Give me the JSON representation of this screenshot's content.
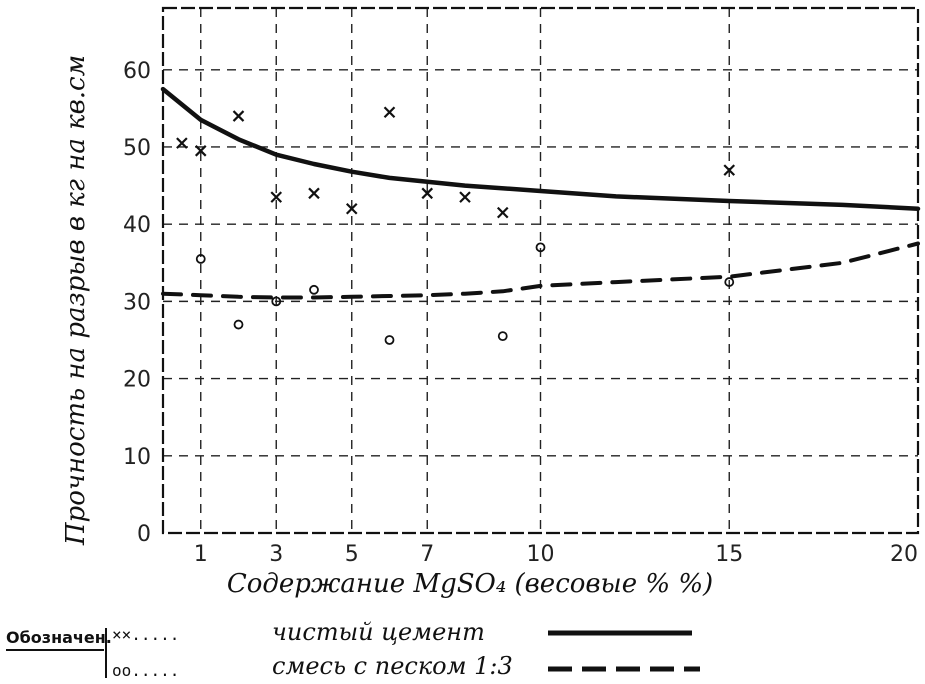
{
  "chart_data": {
    "type": "scatter",
    "ylabel": "Прочность на разрыв в кг на кв.см",
    "xlabel": "Содержание MgSO₄ (весовые % %)",
    "xlim": [
      0,
      20
    ],
    "ylim": [
      0,
      68
    ],
    "x_ticks": [
      1,
      3,
      5,
      7,
      10,
      15,
      20
    ],
    "x_tick_labels": [
      "1",
      "3",
      "5",
      "7",
      "10",
      "15",
      "20"
    ],
    "y_ticks": [
      0,
      10,
      20,
      30,
      40,
      50,
      60
    ],
    "y_tick_labels": [
      "0",
      "10",
      "20",
      "30",
      "40",
      "50",
      "60"
    ],
    "grid": true,
    "legend": {
      "title": "Обозначен.",
      "placement": "bottom-left",
      "entries": [
        {
          "marker": "××.....",
          "label": "чистый цемент",
          "line": "solid"
        },
        {
          "marker": "oo.....",
          "label": "смесь с песком 1:3",
          "line": "dashed"
        }
      ]
    },
    "series": [
      {
        "name": "чистый цемент",
        "marker": "x",
        "points": [
          [
            0.5,
            50.5
          ],
          [
            1.0,
            49.5
          ],
          [
            2.0,
            54.0
          ],
          [
            3.0,
            43.5
          ],
          [
            4.0,
            44.0
          ],
          [
            5.0,
            42.0
          ],
          [
            6.0,
            54.5
          ],
          [
            7.0,
            44.0
          ],
          [
            8.0,
            43.5
          ],
          [
            9.0,
            41.5
          ],
          [
            15.0,
            47.0
          ]
        ],
        "curve": {
          "style": "solid",
          "x": [
            0,
            0.5,
            1,
            2,
            3,
            4,
            5,
            6,
            7,
            8,
            10,
            12,
            15,
            18,
            20
          ],
          "y": [
            57.5,
            55.5,
            53.5,
            51,
            49,
            47.8,
            46.8,
            46,
            45.5,
            45,
            44.3,
            43.6,
            43,
            42.5,
            42
          ]
        }
      },
      {
        "name": "смесь с песком 1:3",
        "marker": "o",
        "points": [
          [
            1.0,
            35.5
          ],
          [
            2.0,
            27.0
          ],
          [
            3.0,
            30.0
          ],
          [
            4.0,
            31.5
          ],
          [
            6.0,
            25.0
          ],
          [
            9.0,
            25.5
          ],
          [
            10.0,
            37.0
          ],
          [
            15.0,
            32.5
          ]
        ],
        "curve": {
          "style": "dashed",
          "x": [
            0,
            1,
            2,
            3,
            4,
            5,
            6,
            7,
            8,
            9,
            10,
            12,
            15,
            18,
            20
          ],
          "y": [
            31,
            30.8,
            30.6,
            30.5,
            30.5,
            30.6,
            30.7,
            30.8,
            31,
            31.3,
            32,
            32.5,
            33.2,
            35,
            37.5
          ]
        }
      }
    ]
  }
}
